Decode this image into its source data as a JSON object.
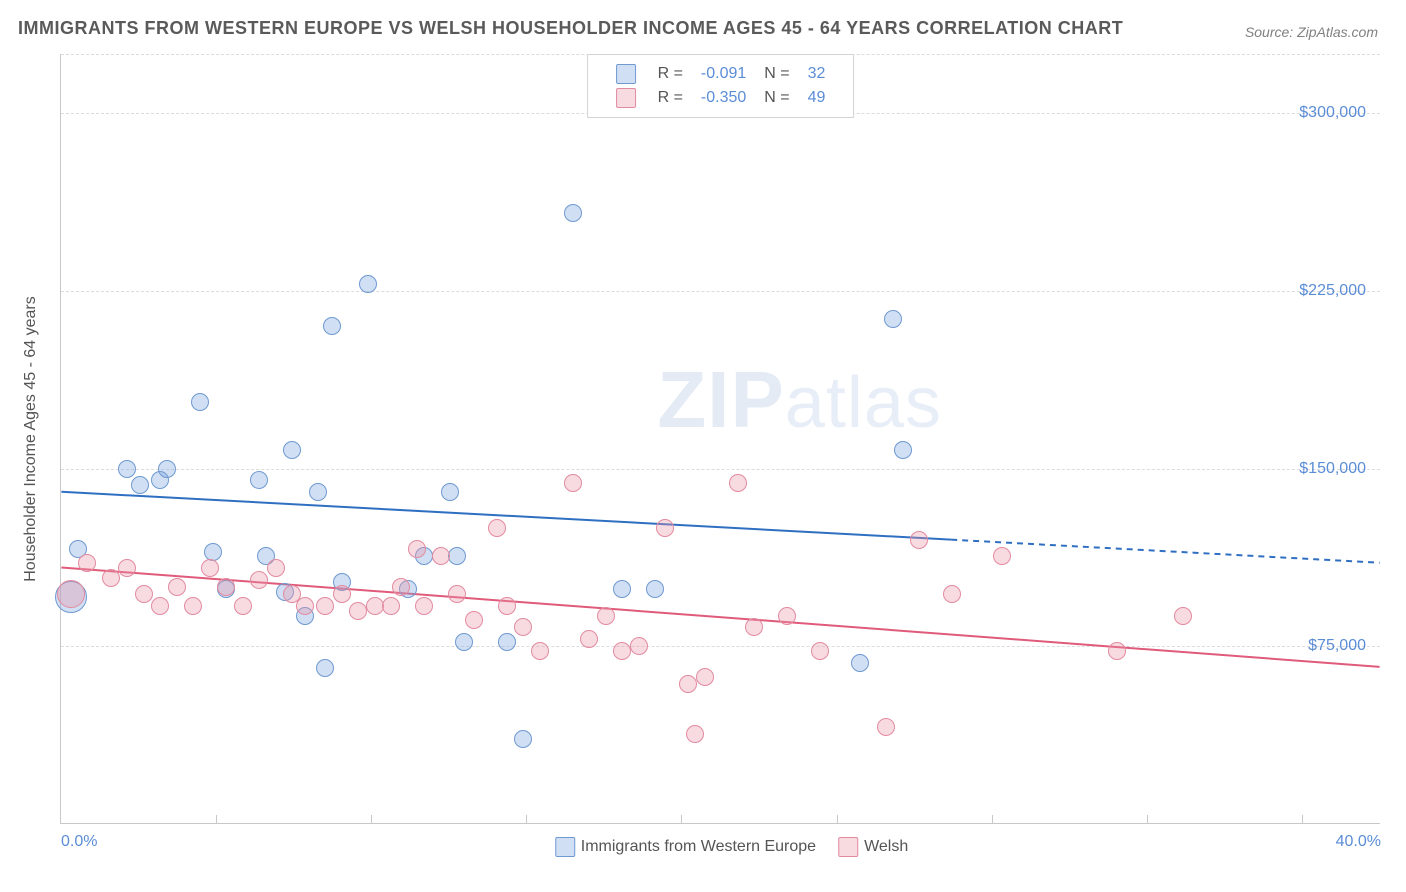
{
  "title": "IMMIGRANTS FROM WESTERN EUROPE VS WELSH HOUSEHOLDER INCOME AGES 45 - 64 YEARS CORRELATION CHART",
  "source_label": "Source: ZipAtlas.com",
  "watermark": {
    "part1": "ZIP",
    "part2": "atlas"
  },
  "chart": {
    "type": "scatter",
    "background_color": "#ffffff",
    "grid_color": "#dcdcdc",
    "axis_color": "#c8c8c8",
    "tick_label_color": "#5b8dd6",
    "tick_label_fontsize": 16,
    "axis_title_color": "#555555",
    "axis_title_fontsize": 16,
    "y_axis_title": "Householder Income Ages 45 - 64 years",
    "xlim": [
      0,
      40
    ],
    "ylim": [
      0,
      325000
    ],
    "x_ticks": [
      0,
      40
    ],
    "x_tick_labels": [
      "0.0%",
      "40.0%"
    ],
    "x_minor_ticks": [
      4.7,
      9.4,
      14.1,
      18.8,
      23.5,
      28.2,
      32.9,
      37.6
    ],
    "y_ticks": [
      75000,
      150000,
      225000,
      300000
    ],
    "y_tick_labels": [
      "$75,000",
      "$150,000",
      "$225,000",
      "$300,000"
    ],
    "y_gridlines": [
      325000,
      300000,
      225000,
      150000,
      75000
    ],
    "point_radius": 9,
    "point_stroke_width": 1,
    "series": [
      {
        "id": "immigrants",
        "label": "Immigrants from Western Europe",
        "fill_color": "rgba(121,163,220,0.35)",
        "stroke_color": "#6f99d1",
        "trend_color": "#2f6fc2",
        "trend_width": 2,
        "R": "-0.091",
        "N": "32",
        "trend": {
          "x1": 0,
          "y1": 140000,
          "x2": 40,
          "y2": 110000,
          "solid_until_x": 27
        },
        "points": [
          {
            "x": 0.3,
            "y": 96000,
            "r": 16
          },
          {
            "x": 0.5,
            "y": 116000
          },
          {
            "x": 2.0,
            "y": 150000
          },
          {
            "x": 2.4,
            "y": 143000
          },
          {
            "x": 3.0,
            "y": 145000
          },
          {
            "x": 3.2,
            "y": 150000
          },
          {
            "x": 4.2,
            "y": 178000
          },
          {
            "x": 4.6,
            "y": 115000
          },
          {
            "x": 6.0,
            "y": 145000
          },
          {
            "x": 5.0,
            "y": 99000
          },
          {
            "x": 6.2,
            "y": 113000
          },
          {
            "x": 7.0,
            "y": 158000
          },
          {
            "x": 7.4,
            "y": 88000
          },
          {
            "x": 7.8,
            "y": 140000
          },
          {
            "x": 8.0,
            "y": 66000
          },
          {
            "x": 9.3,
            "y": 228000
          },
          {
            "x": 8.2,
            "y": 210000
          },
          {
            "x": 10.5,
            "y": 99000
          },
          {
            "x": 11.0,
            "y": 113000
          },
          {
            "x": 11.8,
            "y": 140000
          },
          {
            "x": 12.2,
            "y": 77000
          },
          {
            "x": 12.0,
            "y": 113000
          },
          {
            "x": 13.5,
            "y": 77000
          },
          {
            "x": 14.0,
            "y": 36000
          },
          {
            "x": 17.0,
            "y": 99000
          },
          {
            "x": 15.5,
            "y": 258000
          },
          {
            "x": 18.0,
            "y": 99000
          },
          {
            "x": 24.2,
            "y": 68000
          },
          {
            "x": 25.5,
            "y": 158000
          },
          {
            "x": 25.2,
            "y": 213000
          },
          {
            "x": 8.5,
            "y": 102000
          },
          {
            "x": 6.8,
            "y": 98000
          }
        ]
      },
      {
        "id": "welsh",
        "label": "Welsh",
        "fill_color": "rgba(236,150,168,0.35)",
        "stroke_color": "#e28b9f",
        "trend_color": "#e05a7a",
        "trend_width": 2,
        "R": "-0.350",
        "N": "49",
        "trend": {
          "x1": 0,
          "y1": 108000,
          "x2": 40,
          "y2": 66000,
          "solid_until_x": 40
        },
        "points": [
          {
            "x": 0.3,
            "y": 97000,
            "r": 14
          },
          {
            "x": 0.8,
            "y": 110000
          },
          {
            "x": 1.5,
            "y": 104000
          },
          {
            "x": 2.0,
            "y": 108000
          },
          {
            "x": 2.5,
            "y": 97000
          },
          {
            "x": 3.0,
            "y": 92000
          },
          {
            "x": 3.5,
            "y": 100000
          },
          {
            "x": 4.0,
            "y": 92000
          },
          {
            "x": 4.5,
            "y": 108000
          },
          {
            "x": 5.0,
            "y": 100000
          },
          {
            "x": 5.5,
            "y": 92000
          },
          {
            "x": 6.5,
            "y": 108000
          },
          {
            "x": 7.0,
            "y": 97000
          },
          {
            "x": 7.4,
            "y": 92000
          },
          {
            "x": 8.0,
            "y": 92000
          },
          {
            "x": 8.5,
            "y": 97000
          },
          {
            "x": 9.0,
            "y": 90000
          },
          {
            "x": 9.5,
            "y": 92000
          },
          {
            "x": 10.0,
            "y": 92000
          },
          {
            "x": 10.3,
            "y": 100000
          },
          {
            "x": 11.0,
            "y": 92000
          },
          {
            "x": 11.5,
            "y": 113000
          },
          {
            "x": 12.0,
            "y": 97000
          },
          {
            "x": 12.5,
            "y": 86000
          },
          {
            "x": 13.2,
            "y": 125000
          },
          {
            "x": 13.5,
            "y": 92000
          },
          {
            "x": 14.0,
            "y": 83000
          },
          {
            "x": 14.5,
            "y": 73000
          },
          {
            "x": 15.5,
            "y": 144000
          },
          {
            "x": 16.0,
            "y": 78000
          },
          {
            "x": 16.5,
            "y": 88000
          },
          {
            "x": 17.5,
            "y": 75000
          },
          {
            "x": 18.3,
            "y": 125000
          },
          {
            "x": 19.0,
            "y": 59000
          },
          {
            "x": 19.2,
            "y": 38000
          },
          {
            "x": 19.5,
            "y": 62000
          },
          {
            "x": 20.5,
            "y": 144000
          },
          {
            "x": 21.0,
            "y": 83000
          },
          {
            "x": 22.0,
            "y": 88000
          },
          {
            "x": 23.0,
            "y": 73000
          },
          {
            "x": 25.0,
            "y": 41000
          },
          {
            "x": 26.0,
            "y": 120000
          },
          {
            "x": 27.0,
            "y": 97000
          },
          {
            "x": 28.5,
            "y": 113000
          },
          {
            "x": 32.0,
            "y": 73000
          },
          {
            "x": 34.0,
            "y": 88000
          },
          {
            "x": 10.8,
            "y": 116000
          },
          {
            "x": 6.0,
            "y": 103000
          },
          {
            "x": 17.0,
            "y": 73000
          }
        ]
      }
    ],
    "legend_top": {
      "swatch_size": 20
    },
    "legend_bottom_items": [
      {
        "series": "immigrants"
      },
      {
        "series": "welsh"
      }
    ]
  }
}
